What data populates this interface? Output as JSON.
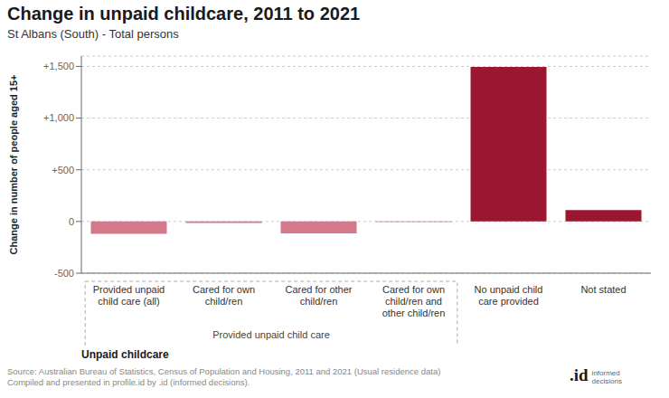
{
  "chart_data": {
    "type": "bar",
    "title": "Change in unpaid childcare, 2011 to 2021",
    "subtitle": "St Albans (South) - Total persons",
    "xlabel": "Unpaid childcare",
    "ylabel": "Change in number of people aged 15+",
    "categories": [
      "Provided unpaid\nchild care (all)",
      "Cared for own\nchild/ren",
      "Cared for other\nchild/ren",
      "Cared for own\nchild/ren and\nother child/ren",
      "No unpaid child\ncare provided",
      "Not stated"
    ],
    "values": [
      -120,
      -15,
      -115,
      -5,
      1495,
      110
    ],
    "colors": [
      "#d4788a",
      "#d4788a",
      "#d4788a",
      "#d4788a",
      "#9b1730",
      "#9b1730"
    ],
    "ylim": [
      -500,
      1600
    ],
    "yticks": [
      -500,
      0,
      {
        "value": 500,
        "label": "+500"
      },
      {
        "value": 1000,
        "label": "+1,000"
      },
      {
        "value": 1500,
        "label": "+1,500"
      }
    ],
    "grid": true,
    "annotations": [
      {
        "text": "Provided unpaid child care",
        "categories": [
          0,
          3
        ]
      },
      {
        "text": ".id"
      },
      {
        "text": "informed\ndecisions"
      }
    ],
    "source": "Source: Australian Bureau of Statistics, Census of Population and Housing, 2011 and 2021 (Usual residence data)\nCompiled and presented in profile.id by .id (informed decisions)."
  }
}
